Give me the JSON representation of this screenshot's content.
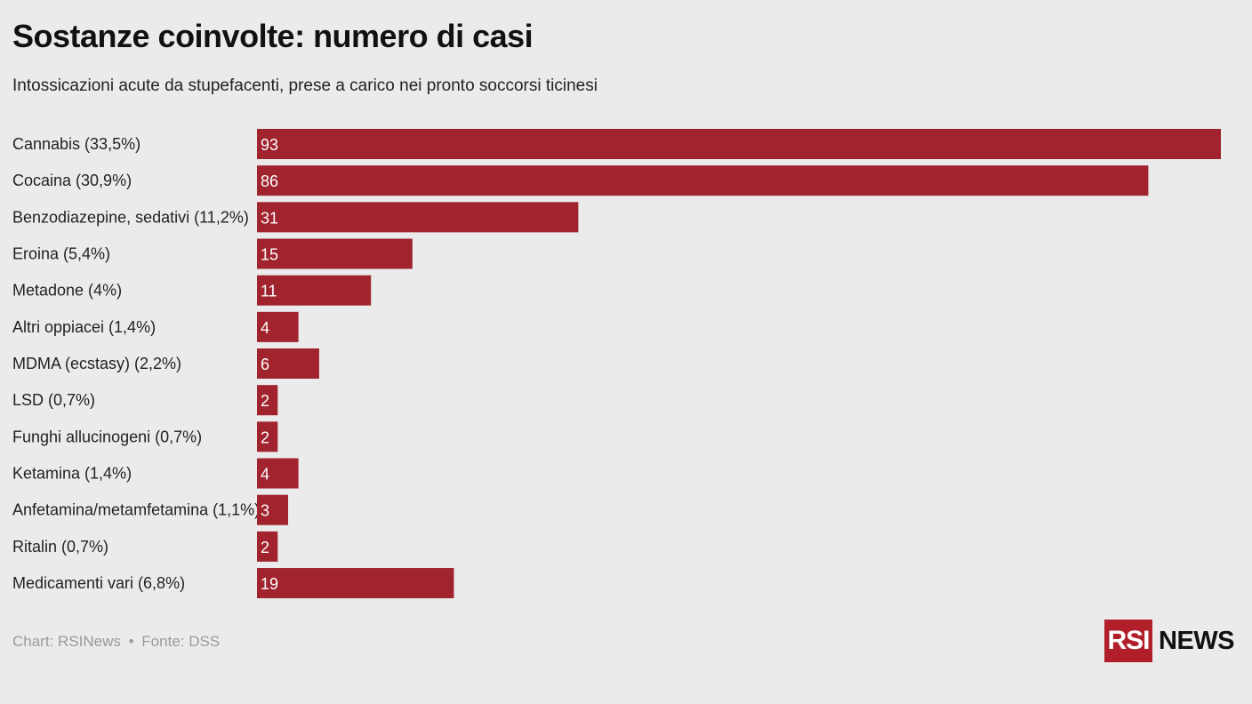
{
  "header": {
    "title": "Sostanze coinvolte: numero di casi",
    "subtitle": "Intossicazioni acute da stupefacenti, prese a carico nei pronto soccorsi ticinesi"
  },
  "footer": {
    "credit": "Chart: RSINews",
    "separator": "•",
    "source": "Fonte: DSS"
  },
  "logo": {
    "box_text": "RSI",
    "word": "NEWS"
  },
  "colors": {
    "bar": "#a0232e",
    "background": "#ebebeb",
    "logo": "#b01f2a"
  },
  "chart_data": {
    "type": "bar",
    "orientation": "horizontal",
    "title": "Sostanze coinvolte: numero di casi",
    "subtitle": "Intossicazioni acute da stupefacenti, prese a carico nei pronto soccorsi ticinesi",
    "categories": [
      "Cannabis (33,5%)",
      "Cocaina (30,9%)",
      "Benzodiazepine, sedativi (11,2%)",
      "Eroina (5,4%)",
      "Metadone (4%)",
      "Altri oppiacei (1,4%)",
      "MDMA (ecstasy) (2,2%)",
      "LSD (0,7%)",
      "Funghi allucinogeni (0,7%)",
      "Ketamina (1,4%)",
      "Anfetamina/metamfetamina (1,1%)",
      "Ritalin (0,7%)",
      "Medicamenti vari (6,8%)"
    ],
    "values": [
      93,
      86,
      31,
      15,
      11,
      4,
      6,
      2,
      2,
      4,
      3,
      2,
      19
    ],
    "xlim": [
      0,
      93
    ],
    "grid": false,
    "legend": "none"
  }
}
